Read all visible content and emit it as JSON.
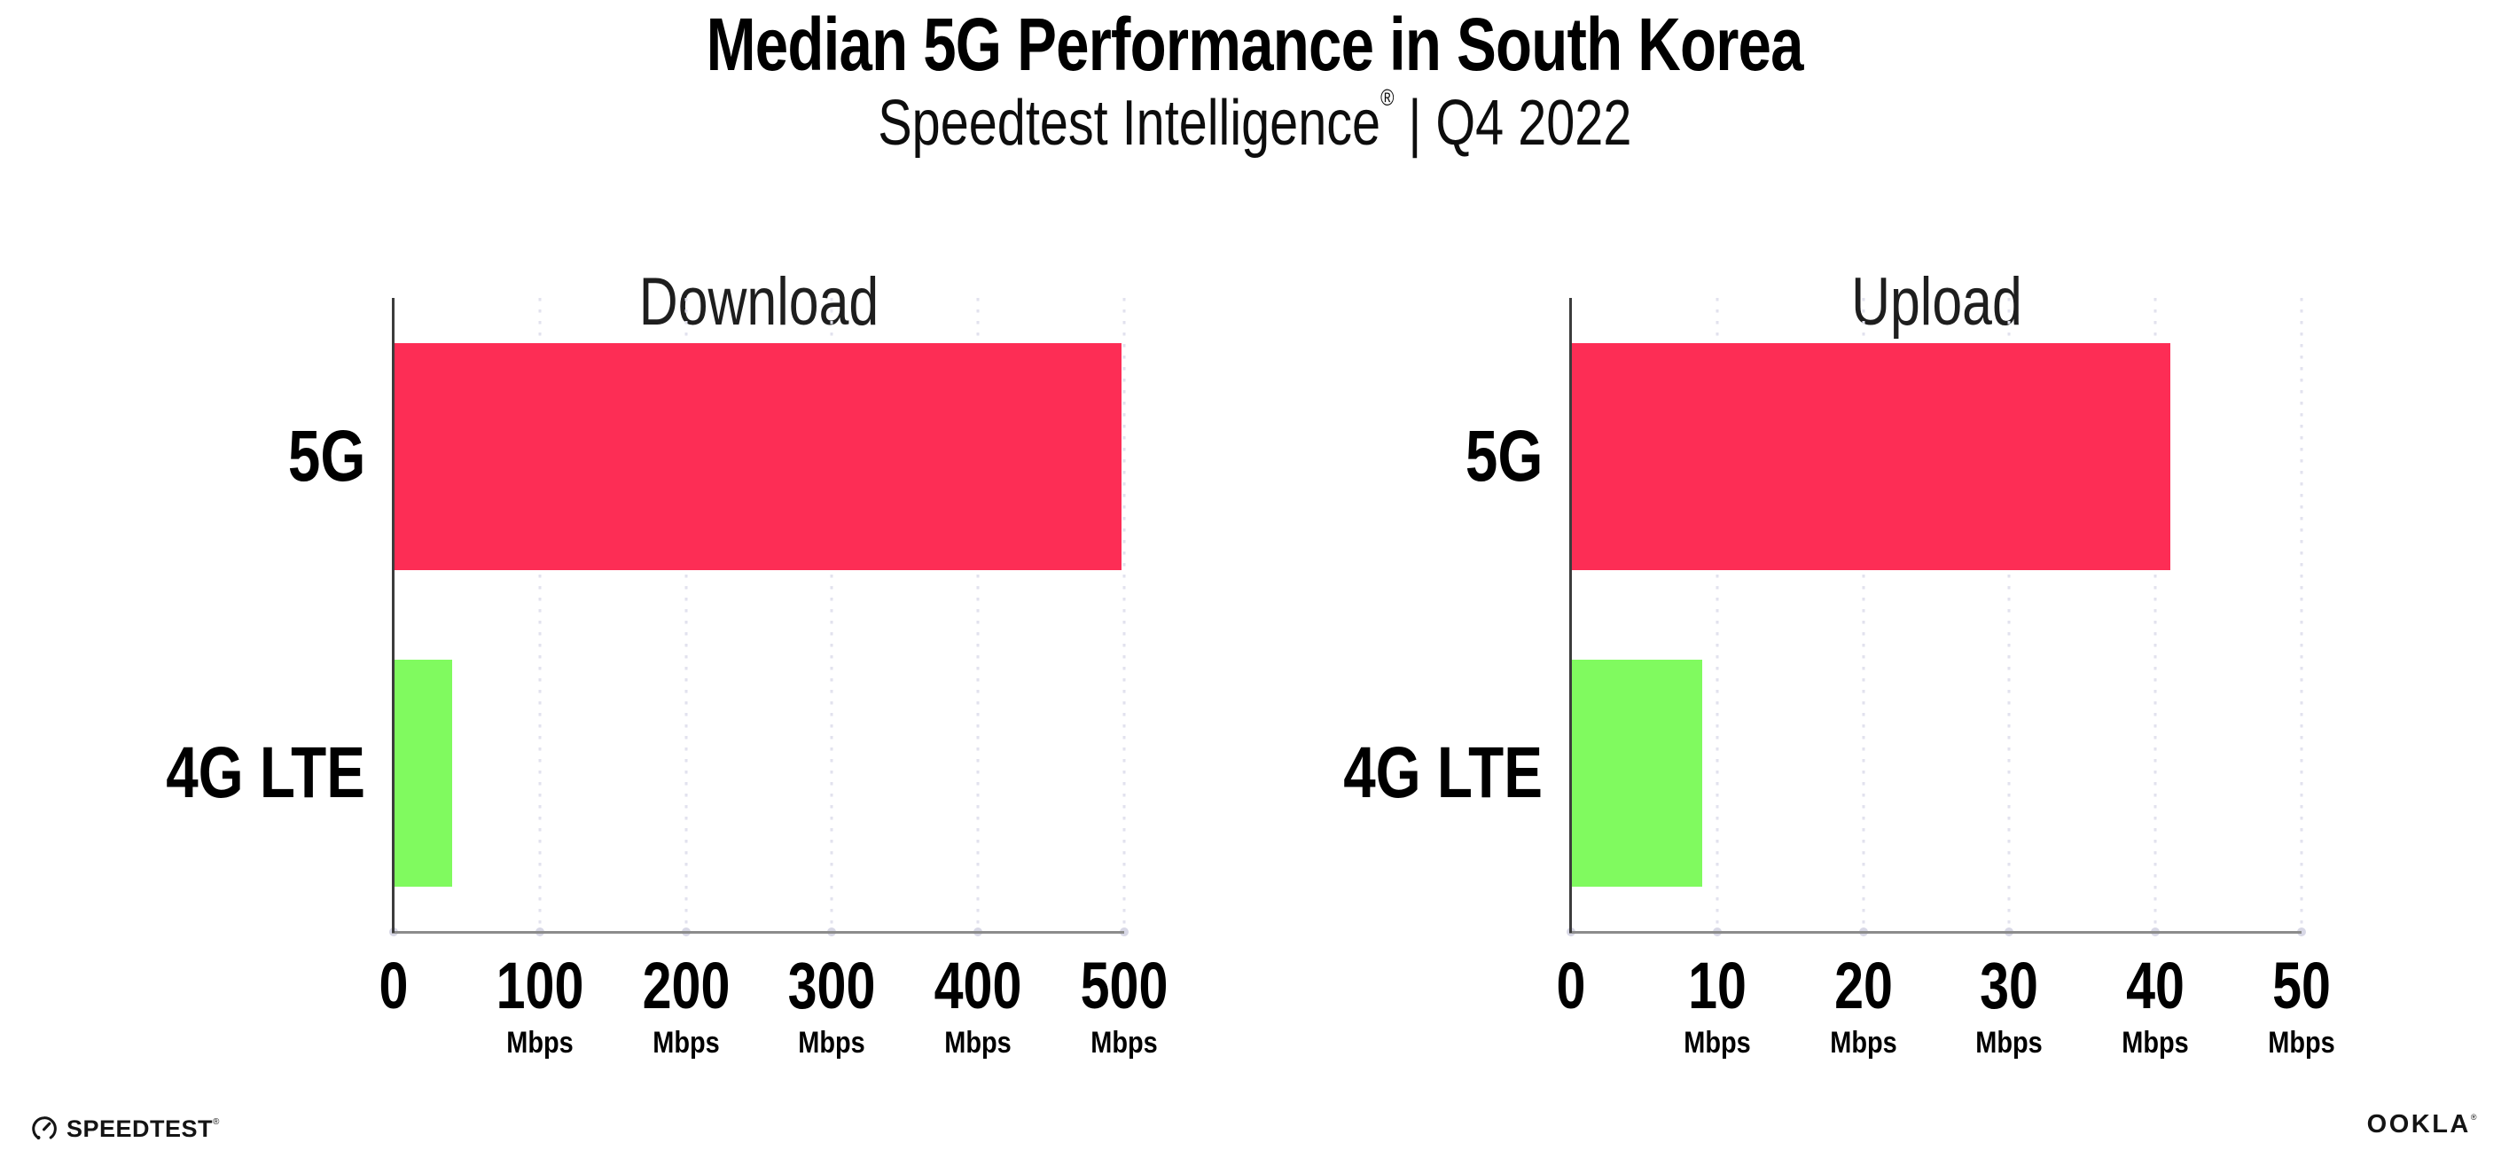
{
  "header": {
    "title": "Median 5G Performance in South Korea",
    "subtitle_pre": "Speedtest Intelligence",
    "subtitle_reg": "®",
    "subtitle_post": " | Q4 2022"
  },
  "colors": {
    "bar_5g": "#FD2D55",
    "bar_4g_lte": "#80FA5F",
    "gridline": "#E2E2EE",
    "tick_dot": "#D8D8E6",
    "y_axis_line": "#3C3C3C",
    "x_axis_line": "#8C8C8C",
    "title_text": "#000000",
    "chart_title_text": "#1E1E1E"
  },
  "chart_data": [
    {
      "type": "bar",
      "orientation": "horizontal",
      "title": "Download",
      "categories": [
        "5G",
        "4G LTE"
      ],
      "values": [
        498,
        40
      ],
      "unit": "Mbps",
      "xlim": [
        0,
        500
      ],
      "xticks": [
        0,
        100,
        200,
        300,
        400,
        500
      ],
      "bar_colors": [
        "#FD2D55",
        "#80FA5F"
      ],
      "grid": "vertical-dotted",
      "legend": "none"
    },
    {
      "type": "bar",
      "orientation": "horizontal",
      "title": "Upload",
      "categories": [
        "5G",
        "4G LTE"
      ],
      "values": [
        41,
        9
      ],
      "unit": "Mbps",
      "xlim": [
        0,
        50
      ],
      "xticks": [
        0,
        10,
        20,
        30,
        40,
        50
      ],
      "bar_colors": [
        "#FD2D55",
        "#80FA5F"
      ],
      "grid": "vertical-dotted",
      "legend": "none"
    }
  ],
  "footer": {
    "speedtest_label": "SPEEDTEST",
    "speedtest_reg": "®",
    "ookla_label": "OOKLA",
    "ookla_reg": "®"
  }
}
